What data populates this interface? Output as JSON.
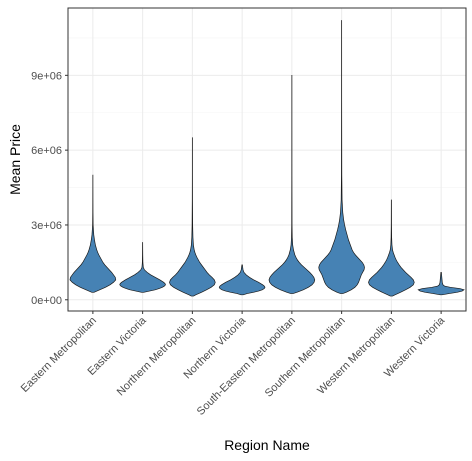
{
  "chart_data": {
    "type": "violin",
    "title": "",
    "xlabel": "Region Name",
    "ylabel": "Mean Price",
    "categories": [
      "Eastern Metropolitan",
      "Eastern Victoria",
      "Northern Metropolitan",
      "Northern Victoria",
      "South-Eastern Metropolitan",
      "Southern Metropolitan",
      "Western Metropolitan",
      "Western Victoria"
    ],
    "y_ticks": [
      {
        "value": 0,
        "label": "0e+00"
      },
      {
        "value": 3000000,
        "label": "3e+06"
      },
      {
        "value": 6000000,
        "label": "6e+06"
      },
      {
        "value": 9000000,
        "label": "9e+06"
      }
    ],
    "ylim": [
      -450000,
      11700000
    ],
    "grid": true,
    "fill_color": "#4682B4",
    "outline_color": "#1a1a1a",
    "violins": [
      {
        "category": "Eastern Metropolitan",
        "min": 300000,
        "max": 5000000,
        "profile": [
          [
            300000,
            0.05
          ],
          [
            400000,
            0.3
          ],
          [
            500000,
            0.55
          ],
          [
            600000,
            0.75
          ],
          [
            700000,
            0.9
          ],
          [
            800000,
            1.0
          ],
          [
            900000,
            0.98
          ],
          [
            1000000,
            0.9
          ],
          [
            1100000,
            0.82
          ],
          [
            1200000,
            0.72
          ],
          [
            1300000,
            0.62
          ],
          [
            1400000,
            0.52
          ],
          [
            1500000,
            0.44
          ],
          [
            1600000,
            0.38
          ],
          [
            1700000,
            0.32
          ],
          [
            1800000,
            0.26
          ],
          [
            1900000,
            0.21
          ],
          [
            2000000,
            0.17
          ],
          [
            2200000,
            0.11
          ],
          [
            2400000,
            0.07
          ],
          [
            2600000,
            0.04
          ],
          [
            2800000,
            0.025
          ],
          [
            3000000,
            0.012
          ],
          [
            3500000,
            0.006
          ],
          [
            4000000,
            0.004
          ],
          [
            4500000,
            0.003
          ],
          [
            5000000,
            0.002
          ]
        ]
      },
      {
        "category": "Eastern Victoria",
        "min": 300000,
        "max": 2300000,
        "profile": [
          [
            300000,
            0.05
          ],
          [
            350000,
            0.3
          ],
          [
            400000,
            0.55
          ],
          [
            450000,
            0.72
          ],
          [
            500000,
            0.86
          ],
          [
            550000,
            0.95
          ],
          [
            600000,
            1.0
          ],
          [
            650000,
            0.98
          ],
          [
            700000,
            0.92
          ],
          [
            800000,
            0.75
          ],
          [
            900000,
            0.55
          ],
          [
            1000000,
            0.35
          ],
          [
            1100000,
            0.2
          ],
          [
            1200000,
            0.08
          ],
          [
            1300000,
            0.03
          ],
          [
            1500000,
            0.012
          ],
          [
            1800000,
            0.006
          ],
          [
            2000000,
            0.004
          ],
          [
            2300000,
            0.002
          ]
        ]
      },
      {
        "category": "Northern Metropolitan",
        "min": 150000,
        "max": 6500000,
        "profile": [
          [
            150000,
            0.05
          ],
          [
            200000,
            0.15
          ],
          [
            300000,
            0.4
          ],
          [
            400000,
            0.62
          ],
          [
            500000,
            0.82
          ],
          [
            600000,
            0.96
          ],
          [
            700000,
            1.0
          ],
          [
            800000,
            0.96
          ],
          [
            900000,
            0.86
          ],
          [
            1000000,
            0.74
          ],
          [
            1100000,
            0.64
          ],
          [
            1200000,
            0.56
          ],
          [
            1300000,
            0.48
          ],
          [
            1400000,
            0.4
          ],
          [
            1500000,
            0.32
          ],
          [
            1600000,
            0.26
          ],
          [
            1700000,
            0.2
          ],
          [
            1800000,
            0.15
          ],
          [
            1900000,
            0.11
          ],
          [
            2000000,
            0.08
          ],
          [
            2200000,
            0.045
          ],
          [
            2500000,
            0.025
          ],
          [
            3000000,
            0.012
          ],
          [
            4000000,
            0.005
          ],
          [
            5000000,
            0.003
          ],
          [
            6500000,
            0.002
          ]
        ]
      },
      {
        "category": "Northern Victoria",
        "min": 200000,
        "max": 1400000,
        "profile": [
          [
            200000,
            0.05
          ],
          [
            250000,
            0.22
          ],
          [
            300000,
            0.5
          ],
          [
            350000,
            0.72
          ],
          [
            400000,
            0.88
          ],
          [
            450000,
            0.97
          ],
          [
            500000,
            1.0
          ],
          [
            550000,
            0.97
          ],
          [
            600000,
            0.9
          ],
          [
            700000,
            0.72
          ],
          [
            800000,
            0.5
          ],
          [
            900000,
            0.32
          ],
          [
            1000000,
            0.18
          ],
          [
            1100000,
            0.08
          ],
          [
            1200000,
            0.04
          ],
          [
            1300000,
            0.025
          ],
          [
            1400000,
            0.01
          ]
        ]
      },
      {
        "category": "South-Eastern Metropolitan",
        "min": 250000,
        "max": 9000000,
        "profile": [
          [
            250000,
            0.05
          ],
          [
            300000,
            0.22
          ],
          [
            400000,
            0.5
          ],
          [
            500000,
            0.72
          ],
          [
            600000,
            0.88
          ],
          [
            700000,
            0.97
          ],
          [
            800000,
            1.0
          ],
          [
            900000,
            0.96
          ],
          [
            1000000,
            0.88
          ],
          [
            1100000,
            0.78
          ],
          [
            1200000,
            0.66
          ],
          [
            1300000,
            0.54
          ],
          [
            1400000,
            0.42
          ],
          [
            1500000,
            0.32
          ],
          [
            1600000,
            0.24
          ],
          [
            1700000,
            0.18
          ],
          [
            1800000,
            0.13
          ],
          [
            2000000,
            0.07
          ],
          [
            2200000,
            0.035
          ],
          [
            2500000,
            0.016
          ],
          [
            3000000,
            0.008
          ],
          [
            5000000,
            0.004
          ],
          [
            7000000,
            0.003
          ],
          [
            9000000,
            0.002
          ]
        ]
      },
      {
        "category": "Southern Metropolitan",
        "min": 250000,
        "max": 11200000,
        "profile": [
          [
            250000,
            0.05
          ],
          [
            300000,
            0.2
          ],
          [
            400000,
            0.42
          ],
          [
            500000,
            0.58
          ],
          [
            600000,
            0.68
          ],
          [
            700000,
            0.74
          ],
          [
            800000,
            0.78
          ],
          [
            900000,
            0.82
          ],
          [
            1000000,
            0.86
          ],
          [
            1100000,
            0.92
          ],
          [
            1200000,
            0.98
          ],
          [
            1300000,
            1.0
          ],
          [
            1400000,
            0.97
          ],
          [
            1500000,
            0.9
          ],
          [
            1600000,
            0.8
          ],
          [
            1700000,
            0.7
          ],
          [
            1800000,
            0.6
          ],
          [
            1900000,
            0.52
          ],
          [
            2000000,
            0.46
          ],
          [
            2200000,
            0.38
          ],
          [
            2400000,
            0.3
          ],
          [
            2600000,
            0.24
          ],
          [
            2800000,
            0.18
          ],
          [
            3000000,
            0.13
          ],
          [
            3200000,
            0.09
          ],
          [
            3500000,
            0.05
          ],
          [
            4000000,
            0.02
          ],
          [
            5000000,
            0.008
          ],
          [
            6700000,
            0.005
          ],
          [
            8000000,
            0.003
          ],
          [
            11200000,
            0.002
          ]
        ]
      },
      {
        "category": "Western Metropolitan",
        "min": 150000,
        "max": 4000000,
        "profile": [
          [
            150000,
            0.05
          ],
          [
            200000,
            0.16
          ],
          [
            300000,
            0.4
          ],
          [
            400000,
            0.62
          ],
          [
            500000,
            0.82
          ],
          [
            600000,
            0.96
          ],
          [
            700000,
            1.0
          ],
          [
            800000,
            0.96
          ],
          [
            900000,
            0.86
          ],
          [
            1000000,
            0.74
          ],
          [
            1100000,
            0.62
          ],
          [
            1200000,
            0.52
          ],
          [
            1300000,
            0.42
          ],
          [
            1400000,
            0.34
          ],
          [
            1500000,
            0.27
          ],
          [
            1600000,
            0.21
          ],
          [
            1700000,
            0.16
          ],
          [
            1800000,
            0.12
          ],
          [
            1900000,
            0.08
          ],
          [
            2000000,
            0.05
          ],
          [
            2200000,
            0.025
          ],
          [
            2500000,
            0.012
          ],
          [
            3000000,
            0.006
          ],
          [
            4000000,
            0.003
          ]
        ]
      },
      {
        "category": "Western Victoria",
        "min": 200000,
        "max": 1100000,
        "profile": [
          [
            200000,
            0.04
          ],
          [
            250000,
            0.35
          ],
          [
            300000,
            0.7
          ],
          [
            350000,
            0.92
          ],
          [
            400000,
            1.0
          ],
          [
            450000,
            0.82
          ],
          [
            500000,
            0.4
          ],
          [
            550000,
            0.15
          ],
          [
            600000,
            0.08
          ],
          [
            700000,
            0.05
          ],
          [
            800000,
            0.04
          ],
          [
            900000,
            0.03
          ],
          [
            1000000,
            0.02
          ],
          [
            1100000,
            0.01
          ]
        ]
      }
    ]
  }
}
